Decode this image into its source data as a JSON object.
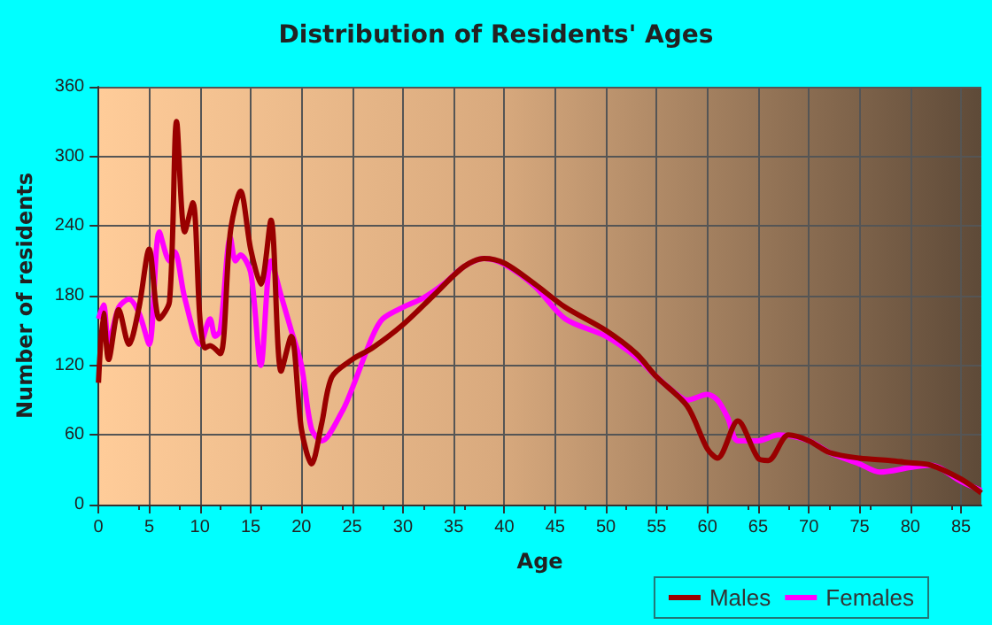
{
  "chart_data": {
    "type": "line",
    "title": "Distribution of Residents' Ages",
    "xlabel": "Age",
    "ylabel": "Number of residents",
    "xlim": [
      0,
      87
    ],
    "xticks": [
      0,
      5,
      10,
      15,
      20,
      25,
      30,
      35,
      40,
      45,
      50,
      55,
      60,
      65,
      70,
      75,
      80,
      85
    ],
    "ylim": [
      0,
      360
    ],
    "yticks": [
      0,
      60,
      120,
      180,
      240,
      300,
      360
    ],
    "grid": true,
    "legend": "bottom right",
    "marker": "none",
    "line_style": "solid",
    "series": [
      {
        "name": "Males",
        "color": "#990000",
        "x": [
          0,
          0.5,
          1,
          2,
          3,
          4,
          5,
          6,
          7,
          7.7,
          8.5,
          9.3,
          10,
          10.5,
          11,
          12,
          13,
          14,
          15,
          16,
          17,
          18,
          19,
          20,
          21,
          22,
          23,
          25,
          27,
          30,
          33,
          36,
          38,
          40,
          43,
          46,
          50,
          53,
          55,
          58,
          60,
          61,
          63,
          65,
          66,
          68,
          70,
          72,
          75,
          78,
          80,
          82,
          85,
          87
        ],
        "values": [
          105,
          165,
          125,
          168,
          138,
          170,
          220,
          160,
          175,
          330,
          235,
          260,
          160,
          135,
          137,
          130,
          235,
          270,
          220,
          190,
          245,
          115,
          145,
          65,
          35,
          70,
          110,
          125,
          135,
          155,
          180,
          205,
          212,
          208,
          190,
          170,
          150,
          130,
          110,
          85,
          48,
          40,
          72,
          40,
          38,
          60,
          55,
          45,
          40,
          38,
          36,
          34,
          22,
          10
        ]
      },
      {
        "name": "Females",
        "color": "#ff00ff",
        "x": [
          0,
          0.5,
          1,
          2,
          3,
          4,
          5,
          6,
          7,
          7.5,
          8.5,
          10,
          11,
          11.5,
          12,
          13,
          13.5,
          14,
          15,
          16,
          17,
          18,
          19,
          20,
          21,
          22,
          24,
          25,
          27,
          28,
          30,
          32,
          34,
          36,
          38,
          40,
          43,
          46,
          50,
          53,
          55,
          57,
          58,
          60,
          61,
          62,
          63,
          65,
          67,
          70,
          72,
          75,
          77,
          80,
          82,
          85,
          87
        ],
        "values": [
          160,
          172,
          140,
          170,
          177,
          165,
          138,
          235,
          210,
          218,
          178,
          138,
          160,
          145,
          150,
          230,
          210,
          215,
          200,
          120,
          210,
          180,
          150,
          120,
          65,
          55,
          80,
          100,
          145,
          160,
          170,
          178,
          190,
          205,
          212,
          207,
          188,
          160,
          145,
          127,
          110,
          95,
          90,
          95,
          90,
          75,
          55,
          55,
          60,
          55,
          45,
          35,
          28,
          32,
          34,
          20,
          12
        ]
      }
    ]
  }
}
